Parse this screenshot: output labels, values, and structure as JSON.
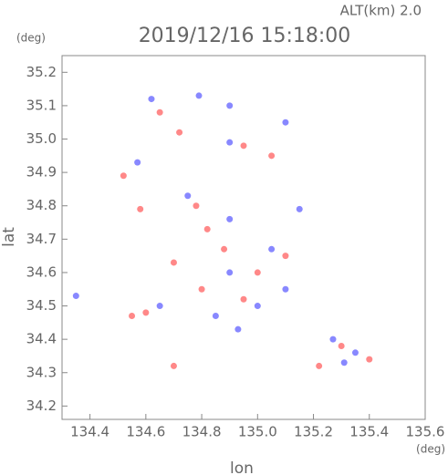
{
  "chart_data": {
    "type": "scatter",
    "annotation": "ALT(km)  2.0",
    "title": "2019/12/16 15:18:00",
    "y_unit": "(deg)",
    "x_unit": "(deg)",
    "xlabel": "lon",
    "ylabel": "lat",
    "xlim": [
      134.3,
      135.6
    ],
    "ylim": [
      34.16,
      35.25
    ],
    "xticks": [
      134.4,
      134.6,
      134.8,
      {
        "value": 135,
        "label": "135.0"
      },
      135.2,
      135.4,
      135.6
    ],
    "yticks": [
      34.2,
      34.3,
      34.4,
      34.5,
      34.6,
      34.7,
      34.8,
      34.9,
      {
        "value": 35,
        "label": "35.0"
      },
      35.1,
      35.2
    ],
    "series": [
      {
        "color": "#ff6a6a",
        "x": [
          134.65,
          134.72,
          134.52,
          134.58,
          134.78,
          134.82,
          134.95,
          135.05,
          134.7,
          134.6,
          134.7,
          134.88,
          135.0,
          135.1,
          135.3,
          135.4,
          134.8,
          134.95,
          135.22,
          134.55
        ],
        "values": [
          35.08,
          35.02,
          34.89,
          34.79,
          34.8,
          34.73,
          34.98,
          34.95,
          34.63,
          34.48,
          34.32,
          34.67,
          34.6,
          34.65,
          34.38,
          34.34,
          34.55,
          34.52,
          34.32,
          34.47
        ]
      },
      {
        "color": "#6a6aff",
        "x": [
          134.62,
          134.79,
          134.9,
          135.1,
          134.9,
          134.57,
          134.75,
          134.9,
          135.15,
          134.35,
          134.9,
          135.05,
          134.85,
          135.0,
          135.27,
          135.35,
          135.31,
          134.65,
          135.1,
          134.93
        ],
        "values": [
          35.12,
          35.13,
          35.1,
          35.05,
          34.99,
          34.93,
          34.83,
          34.76,
          34.79,
          34.53,
          34.6,
          34.67,
          34.47,
          34.5,
          34.4,
          34.36,
          34.33,
          34.5,
          34.55,
          34.43
        ]
      }
    ]
  }
}
